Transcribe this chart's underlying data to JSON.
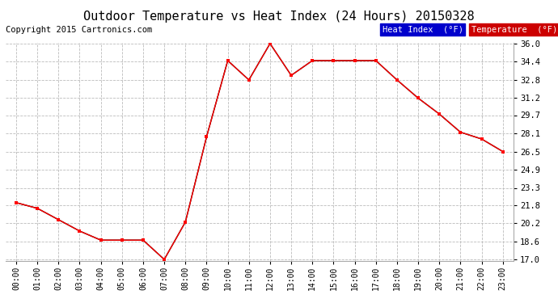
{
  "title": "Outdoor Temperature vs Heat Index (24 Hours) 20150328",
  "copyright": "Copyright 2015 Cartronics.com",
  "hours": [
    "00:00",
    "01:00",
    "02:00",
    "03:00",
    "04:00",
    "05:00",
    "06:00",
    "07:00",
    "08:00",
    "09:00",
    "10:00",
    "11:00",
    "12:00",
    "13:00",
    "14:00",
    "15:00",
    "16:00",
    "17:00",
    "18:00",
    "19:00",
    "20:00",
    "21:00",
    "22:00",
    "23:00"
  ],
  "temperature": [
    22.0,
    21.5,
    20.5,
    19.5,
    18.7,
    18.7,
    18.7,
    17.0,
    20.3,
    27.8,
    34.5,
    32.8,
    36.0,
    33.2,
    34.5,
    34.5,
    34.5,
    34.5,
    32.8,
    31.2,
    29.8,
    28.2,
    27.6,
    26.5
  ],
  "heat_index": [
    22.0,
    21.5,
    20.5,
    19.5,
    18.7,
    18.7,
    18.7,
    17.0,
    20.3,
    27.8,
    34.5,
    32.8,
    36.0,
    33.2,
    34.5,
    34.5,
    34.5,
    34.5,
    32.8,
    31.2,
    29.8,
    28.2,
    27.6,
    26.5
  ],
  "temp_color": "#ff0000",
  "heat_color": "#000000",
  "ylim_min": 17.0,
  "ylim_max": 36.0,
  "yticks": [
    17.0,
    18.6,
    20.2,
    21.8,
    23.3,
    24.9,
    26.5,
    28.1,
    29.7,
    31.2,
    32.8,
    34.4,
    36.0
  ],
  "background_color": "#ffffff",
  "grid_color": "#bbbbbb",
  "legend_heat_bg": "#0000cc",
  "legend_temp_bg": "#cc0000",
  "legend_text_color": "#ffffff",
  "title_fontsize": 11,
  "copyright_fontsize": 7.5
}
